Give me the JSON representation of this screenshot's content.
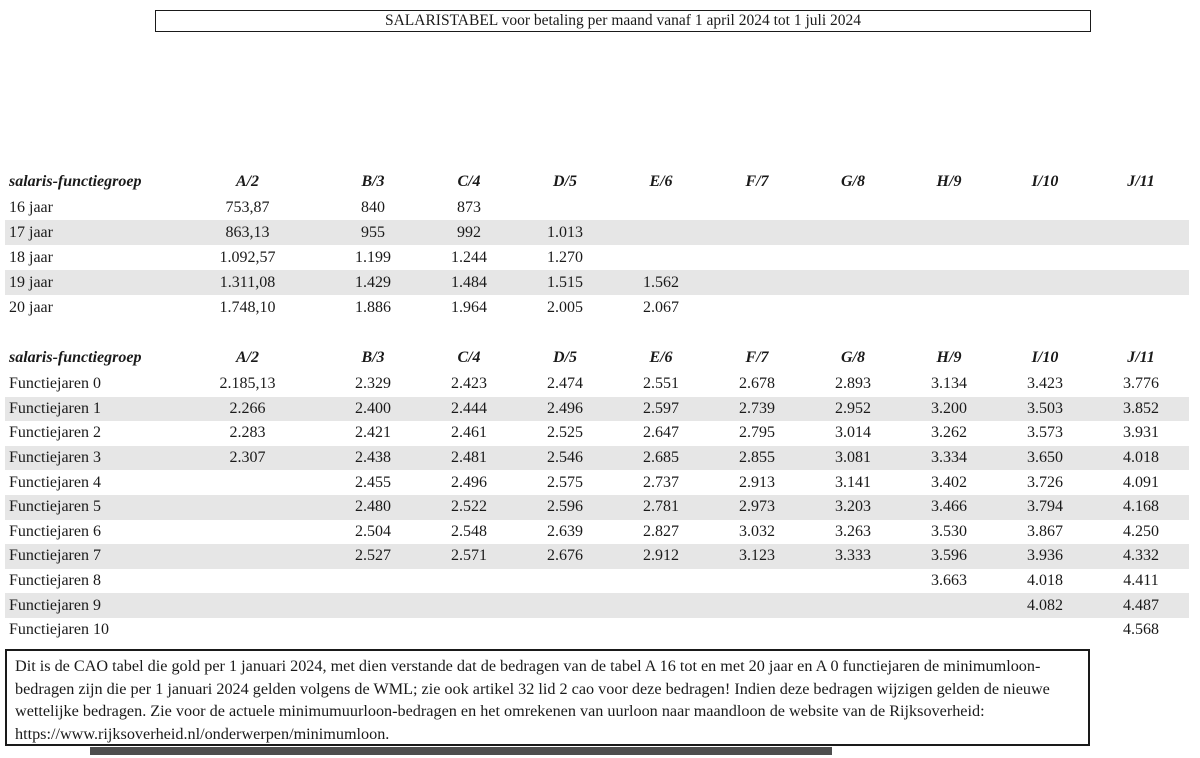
{
  "page": {
    "title": "SALARISTABEL voor betaling per maand vanaf 1 april 2024 tot 1 juli 2024"
  },
  "tables": [
    {
      "header_label": "salaris-functiegroep",
      "columns": [
        "A/2",
        "B/3",
        "C/4",
        "D/5",
        "E/6",
        "F/7",
        "G/8",
        "H/9",
        "I/10",
        "J/11"
      ],
      "rows": [
        {
          "label": "16 jaar",
          "values": [
            "753,87",
            "840",
            "873",
            "",
            "",
            "",
            "",
            "",
            "",
            ""
          ],
          "shaded": false
        },
        {
          "label": "17 jaar",
          "values": [
            "863,13",
            "955",
            "992",
            "1.013",
            "",
            "",
            "",
            "",
            "",
            ""
          ],
          "shaded": true
        },
        {
          "label": "18 jaar",
          "values": [
            "1.092,57",
            "1.199",
            "1.244",
            "1.270",
            "",
            "",
            "",
            "",
            "",
            ""
          ],
          "shaded": false
        },
        {
          "label": "19 jaar",
          "values": [
            "1.311,08",
            "1.429",
            "1.484",
            "1.515",
            "1.562",
            "",
            "",
            "",
            "",
            ""
          ],
          "shaded": true
        },
        {
          "label": "20 jaar",
          "values": [
            "1.748,10",
            "1.886",
            "1.964",
            "2.005",
            "2.067",
            "",
            "",
            "",
            "",
            ""
          ],
          "shaded": false
        }
      ]
    },
    {
      "header_label": "salaris-functiegroep",
      "columns": [
        "A/2",
        "B/3",
        "C/4",
        "D/5",
        "E/6",
        "F/7",
        "G/8",
        "H/9",
        "I/10",
        "J/11"
      ],
      "rows": [
        {
          "label": "Functiejaren 0",
          "values": [
            "2.185,13",
            "2.329",
            "2.423",
            "2.474",
            "2.551",
            "2.678",
            "2.893",
            "3.134",
            "3.423",
            "3.776"
          ],
          "shaded": false
        },
        {
          "label": "Functiejaren 1",
          "values": [
            "2.266",
            "2.400",
            "2.444",
            "2.496",
            "2.597",
            "2.739",
            "2.952",
            "3.200",
            "3.503",
            "3.852"
          ],
          "shaded": true
        },
        {
          "label": "Functiejaren 2",
          "values": [
            "2.283",
            "2.421",
            "2.461",
            "2.525",
            "2.647",
            "2.795",
            "3.014",
            "3.262",
            "3.573",
            "3.931"
          ],
          "shaded": false
        },
        {
          "label": "Functiejaren 3",
          "values": [
            "2.307",
            "2.438",
            "2.481",
            "2.546",
            "2.685",
            "2.855",
            "3.081",
            "3.334",
            "3.650",
            "4.018"
          ],
          "shaded": true
        },
        {
          "label": "Functiejaren 4",
          "values": [
            "",
            "2.455",
            "2.496",
            "2.575",
            "2.737",
            "2.913",
            "3.141",
            "3.402",
            "3.726",
            "4.091"
          ],
          "shaded": false
        },
        {
          "label": "Functiejaren 5",
          "values": [
            "",
            "2.480",
            "2.522",
            "2.596",
            "2.781",
            "2.973",
            "3.203",
            "3.466",
            "3.794",
            "4.168"
          ],
          "shaded": true
        },
        {
          "label": "Functiejaren 6",
          "values": [
            "",
            "2.504",
            "2.548",
            "2.639",
            "2.827",
            "3.032",
            "3.263",
            "3.530",
            "3.867",
            "4.250"
          ],
          "shaded": false
        },
        {
          "label": "Functiejaren 7",
          "values": [
            "",
            "2.527",
            "2.571",
            "2.676",
            "2.912",
            "3.123",
            "3.333",
            "3.596",
            "3.936",
            "4.332"
          ],
          "shaded": true
        },
        {
          "label": "Functiejaren 8",
          "values": [
            "",
            "",
            "",
            "",
            "",
            "",
            "",
            "3.663",
            "4.018",
            "4.411"
          ],
          "shaded": false
        },
        {
          "label": "Functiejaren 9",
          "values": [
            "",
            "",
            "",
            "",
            "",
            "",
            "",
            "",
            "4.082",
            "4.487"
          ],
          "shaded": true
        },
        {
          "label": "Functiejaren 10",
          "values": [
            "",
            "",
            "",
            "",
            "",
            "",
            "",
            "",
            "",
            "4.568"
          ],
          "shaded": false
        }
      ]
    }
  ],
  "footer_note": "Dit is de CAO tabel die gold per 1 januari 2024, met dien verstande dat de bedragen van de tabel A 16 tot en met 20 jaar en A 0 functiejaren de minimumloon-bedragen zijn die per 1 januari 2024 gelden volgens de WML; zie ook artikel 32 lid 2 cao voor deze bedragen! Indien deze bedragen wijzigen gelden de nieuwe wettelijke bedragen. Zie voor de actuele minimumuurloon-bedragen en het omrekenen van uurloon naar maandloon de website van de Rijksoverheid: https://www.rijksoverheid.nl/onderwerpen/minimumloon.",
  "colors": {
    "text": "#1a1a1a",
    "border": "#1a1a1a",
    "row_shading": "#e6e6e6",
    "bottom_bar": "#4e4e4e"
  }
}
